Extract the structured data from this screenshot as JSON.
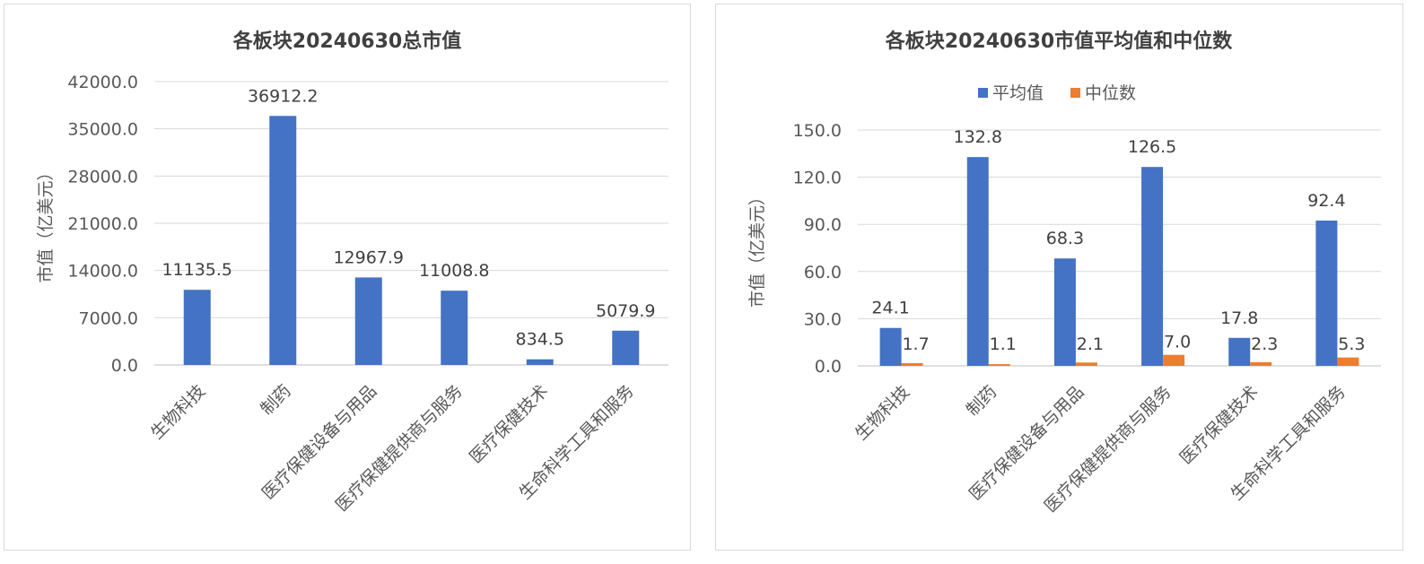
{
  "chart_data": [
    {
      "type": "bar",
      "title": "各板块20240630总市值",
      "ylabel": "市值（亿美元）",
      "xlabel": "",
      "categories": [
        "生物科技",
        "制药",
        "医疗保健设备与用品",
        "医疗保健提供商与服务",
        "医疗保健技术",
        "生命科学工具和服务"
      ],
      "yticks": [
        "0.0",
        "7000.0",
        "14000.0",
        "21000.0",
        "28000.0",
        "35000.0",
        "42000.0"
      ],
      "ylim": [
        0,
        42000
      ],
      "grid": true,
      "series": [
        {
          "values": [
            11135.5,
            36912.2,
            12967.9,
            11008.8,
            834.5,
            5079.9
          ],
          "labels": [
            "11135.5",
            "36912.2",
            "12967.9",
            "11008.8",
            "834.5",
            "5079.9"
          ],
          "color": "#4472c4"
        }
      ]
    },
    {
      "type": "bar",
      "title": "各板块20240630市值平均值和中位数",
      "ylabel": "市值（亿美元）",
      "xlabel": "",
      "categories": [
        "生物科技",
        "制药",
        "医疗保健设备与用品",
        "医疗保健提供商与服务",
        "医疗保健技术",
        "生命科学工具和服务"
      ],
      "yticks": [
        "0.0",
        "30.0",
        "60.0",
        "90.0",
        "120.0",
        "150.0"
      ],
      "ylim": [
        0,
        150
      ],
      "grid": true,
      "legend": "top",
      "series": [
        {
          "name": "平均值",
          "values": [
            24.1,
            132.8,
            68.3,
            126.5,
            17.8,
            92.4
          ],
          "labels": [
            "24.1",
            "132.8",
            "68.3",
            "126.5",
            "17.8",
            "92.4"
          ],
          "color": "#4472c4"
        },
        {
          "name": "中位数",
          "values": [
            1.7,
            1.1,
            2.1,
            7.0,
            2.3,
            5.3
          ],
          "labels": [
            "1.7",
            "1.1",
            "2.1",
            "7.0",
            "2.3",
            "5.3"
          ],
          "color": "#ed7d31"
        }
      ]
    }
  ]
}
